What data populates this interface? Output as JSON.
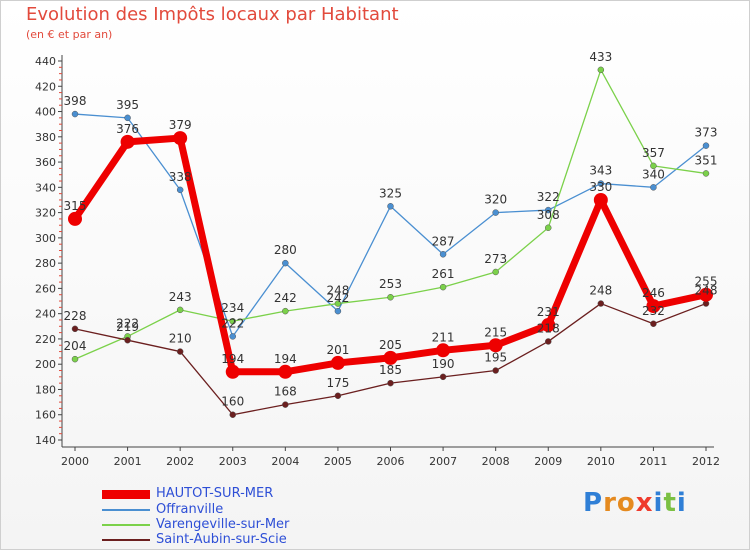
{
  "title": "Evolution des Impôts locaux par Habitant",
  "subtitle": "(en € et par an)",
  "logo": "Proxiti",
  "chart_data": {
    "type": "line",
    "x": [
      "2000",
      "2001",
      "2002",
      "2003",
      "2004",
      "2005",
      "2006",
      "2007",
      "2008",
      "2009",
      "2010",
      "2011",
      "2012"
    ],
    "ylim": [
      140,
      440
    ],
    "yticks": [
      140,
      160,
      180,
      200,
      220,
      240,
      260,
      280,
      300,
      320,
      340,
      360,
      380,
      400,
      420,
      440
    ],
    "grid": false,
    "legend_position": "bottom",
    "series": [
      {
        "name": "HAUTOT-SUR-MER",
        "color": "#ee0000",
        "values": [
          315,
          376,
          379,
          194,
          194,
          201,
          205,
          211,
          215,
          231,
          330,
          246,
          255
        ],
        "labels": [
          "315",
          "376",
          "379",
          "194",
          "194",
          "201",
          "205",
          "211",
          "215",
          "231",
          "330",
          "246",
          "255"
        ]
      },
      {
        "name": "Offranville",
        "color": "#4a8fd1",
        "values": [
          398,
          395,
          338,
          222,
          280,
          242,
          325,
          287,
          320,
          322,
          343,
          340,
          373
        ],
        "labels": [
          "398",
          "395",
          "338",
          "222",
          "280",
          "242",
          "325",
          "287",
          "320",
          "322",
          "343",
          "340",
          "373"
        ]
      },
      {
        "name": "Varengeville-sur-Mer",
        "color": "#7bd14a",
        "values": [
          204,
          222,
          243,
          234,
          242,
          248,
          253,
          261,
          273,
          308,
          433,
          357,
          351
        ],
        "labels": [
          "204",
          "222",
          "243",
          "234",
          "242",
          "248",
          "253",
          "261",
          "273",
          "308",
          "433",
          "357",
          "351"
        ]
      },
      {
        "name": "Saint-Aubin-sur-Scie",
        "color": "#6b1f1f",
        "values": [
          228,
          219,
          210,
          160,
          168,
          175,
          185,
          190,
          195,
          218,
          248,
          232,
          248
        ],
        "labels": [
          "228",
          "219",
          "210",
          "160",
          "168",
          "175",
          "185",
          "190",
          "195",
          "218",
          "248",
          "232",
          "248"
        ]
      }
    ]
  }
}
